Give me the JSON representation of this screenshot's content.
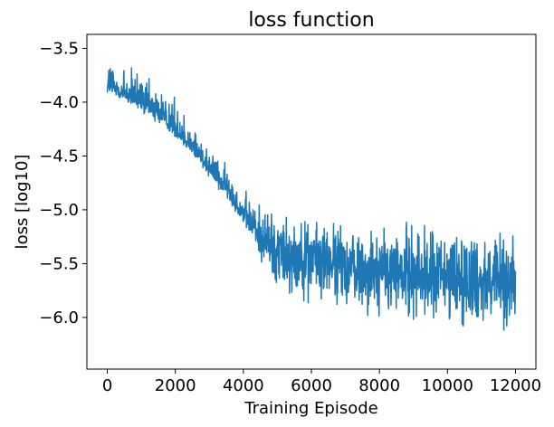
{
  "chart_data": {
    "type": "line",
    "title": "loss function",
    "xlabel": "Training Episode",
    "ylabel": "loss [log10]",
    "xlim": [
      -600,
      12600
    ],
    "ylim": [
      -6.48,
      -3.37
    ],
    "xticks": [
      0,
      2000,
      4000,
      6000,
      8000,
      10000,
      12000
    ],
    "xtick_labels": [
      "0",
      "2000",
      "4000",
      "6000",
      "8000",
      "10000",
      "12000"
    ],
    "yticks": [
      -3.5,
      -4.0,
      -4.5,
      -5.0,
      -5.5,
      -6.0
    ],
    "ytick_labels": [
      "−3.5",
      "−4.0",
      "−4.5",
      "−5.0",
      "−5.5",
      "−6.0"
    ],
    "grid": false,
    "legend": "none",
    "series": [
      {
        "color": "#1f77b4",
        "x_range": [
          0,
          12000
        ],
        "trend": {
          "x": [
            0,
            500,
            1000,
            1500,
            2000,
            2500,
            3000,
            3500,
            4000,
            4500,
            5000,
            6000,
            7000,
            8000,
            9000,
            10000,
            11000,
            12000
          ],
          "y": [
            -3.85,
            -3.93,
            -4.0,
            -4.1,
            -4.25,
            -4.42,
            -4.6,
            -4.8,
            -5.05,
            -5.25,
            -5.35,
            -5.45,
            -5.52,
            -5.58,
            -5.6,
            -5.63,
            -5.63,
            -5.65
          ]
        },
        "band": {
          "x": [
            0,
            1000,
            2000,
            3000,
            4000,
            5000,
            6000,
            8000,
            10000,
            12000
          ],
          "lower": [
            -3.95,
            -4.15,
            -4.35,
            -4.72,
            -5.15,
            -5.9,
            -5.95,
            -6.1,
            -6.2,
            -6.25
          ],
          "upper": [
            -3.45,
            -3.68,
            -3.88,
            -4.35,
            -4.75,
            -4.95,
            -5.0,
            -5.05,
            -5.0,
            -5.1
          ]
        }
      }
    ]
  }
}
